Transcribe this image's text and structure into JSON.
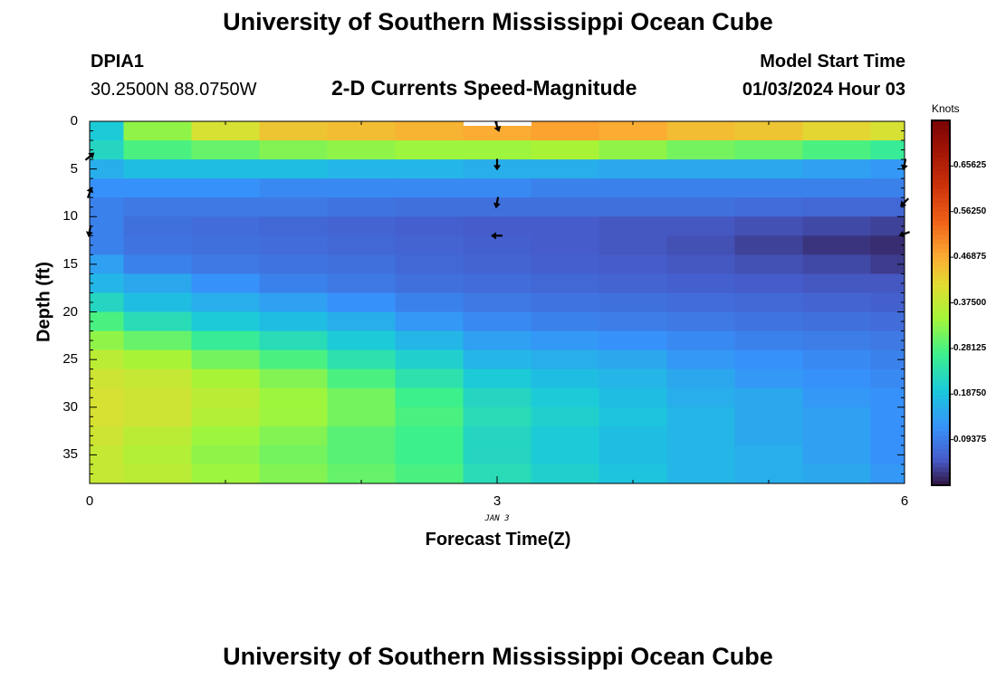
{
  "header": {
    "title": "University of Southern Mississippi Ocean Cube",
    "station_id": "DPIA1",
    "location": "30.2500N  88.0750W",
    "subtitle": "2-D Currents Speed-Magnitude",
    "model_start_label": "Model Start Time",
    "model_start_value": "01/03/2024 Hour 03"
  },
  "footer": {
    "title": "University of Southern Mississippi Ocean Cube"
  },
  "chart_data": {
    "type": "heatmap",
    "title": "2-D Currents Speed-Magnitude",
    "xlabel": "Forecast Time(Z)",
    "ylabel": "Depth (ft)",
    "x_date_label": "JAN 3",
    "xlim": [
      0,
      6
    ],
    "ylim": [
      0,
      38
    ],
    "x_ticks": [
      "0",
      "3",
      "6"
    ],
    "y_ticks": [
      "0",
      "5",
      "10",
      "15",
      "20",
      "25",
      "30",
      "35"
    ],
    "y_tick_values": [
      0,
      5,
      10,
      15,
      20,
      25,
      30,
      35
    ],
    "colorbar": {
      "label": "Knots",
      "min": 0.0,
      "max": 0.75,
      "tick_labels": [
        "0.65625",
        "0.56250",
        "0.46875",
        "0.37500",
        "0.28125",
        "0.18750",
        "0.09375"
      ],
      "tick_values": [
        0.65625,
        0.5625,
        0.46875,
        0.375,
        0.28125,
        0.1875,
        0.09375
      ]
    },
    "time_columns": [
      0,
      0.5,
      1,
      1.5,
      2,
      2.5,
      3,
      3.5,
      4,
      4.5,
      5,
      5.5,
      6
    ],
    "depth_rows": [
      0,
      2,
      4,
      6,
      8,
      10,
      12,
      14,
      16,
      18,
      20,
      22,
      24,
      26,
      28,
      30,
      32,
      34,
      36
    ],
    "values": [
      [
        0.2,
        0.33,
        0.4,
        0.44,
        0.45,
        0.46,
        0.47,
        0.48,
        0.47,
        0.45,
        0.44,
        0.42,
        0.4
      ],
      [
        0.22,
        0.28,
        0.3,
        0.32,
        0.33,
        0.34,
        0.34,
        0.35,
        0.33,
        0.31,
        0.3,
        0.28,
        0.26
      ],
      [
        0.16,
        0.18,
        0.18,
        0.18,
        0.17,
        0.17,
        0.16,
        0.16,
        0.15,
        0.15,
        0.15,
        0.14,
        0.13
      ],
      [
        0.12,
        0.12,
        0.12,
        0.11,
        0.11,
        0.11,
        0.11,
        0.1,
        0.1,
        0.1,
        0.1,
        0.1,
        0.1
      ],
      [
        0.1,
        0.09,
        0.09,
        0.09,
        0.085,
        0.08,
        0.08,
        0.08,
        0.08,
        0.08,
        0.075,
        0.07,
        0.07
      ],
      [
        0.1,
        0.08,
        0.075,
        0.07,
        0.065,
        0.06,
        0.055,
        0.055,
        0.05,
        0.05,
        0.045,
        0.04,
        0.035
      ],
      [
        0.1,
        0.085,
        0.08,
        0.075,
        0.07,
        0.065,
        0.06,
        0.055,
        0.05,
        0.045,
        0.035,
        0.025,
        0.02
      ],
      [
        0.14,
        0.1,
        0.09,
        0.085,
        0.08,
        0.07,
        0.065,
        0.06,
        0.055,
        0.05,
        0.045,
        0.04,
        0.03
      ],
      [
        0.17,
        0.15,
        0.12,
        0.1,
        0.09,
        0.08,
        0.075,
        0.07,
        0.065,
        0.06,
        0.055,
        0.05,
        0.05
      ],
      [
        0.22,
        0.18,
        0.16,
        0.14,
        0.12,
        0.1,
        0.09,
        0.085,
        0.08,
        0.075,
        0.07,
        0.065,
        0.06
      ],
      [
        0.28,
        0.23,
        0.2,
        0.18,
        0.16,
        0.13,
        0.11,
        0.1,
        0.095,
        0.09,
        0.085,
        0.08,
        0.075
      ],
      [
        0.33,
        0.3,
        0.26,
        0.23,
        0.2,
        0.17,
        0.14,
        0.13,
        0.12,
        0.11,
        0.1,
        0.095,
        0.09
      ],
      [
        0.37,
        0.35,
        0.31,
        0.28,
        0.24,
        0.21,
        0.17,
        0.16,
        0.15,
        0.13,
        0.12,
        0.11,
        0.1
      ],
      [
        0.39,
        0.38,
        0.35,
        0.32,
        0.28,
        0.24,
        0.2,
        0.18,
        0.17,
        0.15,
        0.13,
        0.12,
        0.11
      ],
      [
        0.4,
        0.39,
        0.37,
        0.34,
        0.31,
        0.27,
        0.22,
        0.2,
        0.18,
        0.16,
        0.15,
        0.13,
        0.12
      ],
      [
        0.4,
        0.39,
        0.36,
        0.34,
        0.31,
        0.28,
        0.23,
        0.21,
        0.19,
        0.17,
        0.15,
        0.14,
        0.12
      ],
      [
        0.39,
        0.37,
        0.34,
        0.32,
        0.29,
        0.27,
        0.22,
        0.2,
        0.18,
        0.17,
        0.15,
        0.14,
        0.12
      ],
      [
        0.38,
        0.36,
        0.33,
        0.31,
        0.29,
        0.27,
        0.22,
        0.2,
        0.18,
        0.17,
        0.16,
        0.14,
        0.12
      ],
      [
        0.38,
        0.37,
        0.34,
        0.32,
        0.3,
        0.28,
        0.23,
        0.21,
        0.19,
        0.17,
        0.16,
        0.15,
        0.13
      ]
    ],
    "vectors": [
      {
        "time": 0,
        "depth": 3.7,
        "angle_deg": -40
      },
      {
        "time": 0,
        "depth": 7.5,
        "angle_deg": -70
      },
      {
        "time": 0,
        "depth": 11.5,
        "angle_deg": 100
      },
      {
        "time": 3,
        "depth": 0.5,
        "angle_deg": 70
      },
      {
        "time": 3,
        "depth": 4.5,
        "angle_deg": 90
      },
      {
        "time": 3,
        "depth": 8.5,
        "angle_deg": 100
      },
      {
        "time": 3,
        "depth": 12.0,
        "angle_deg": 180
      },
      {
        "time": 6,
        "depth": 4.5,
        "angle_deg": 100
      },
      {
        "time": 6,
        "depth": 8.5,
        "angle_deg": 135
      },
      {
        "time": 6,
        "depth": 11.8,
        "angle_deg": 160
      }
    ]
  }
}
